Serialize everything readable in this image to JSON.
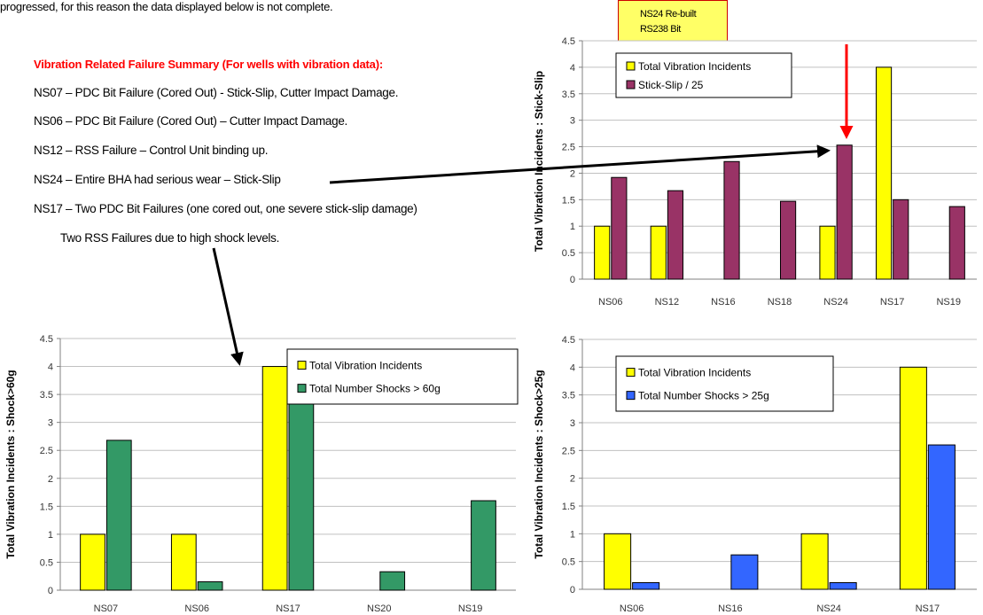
{
  "intro_text": "progressed, for this reason the data displayed below is not complete.",
  "summary_heading": "Vibration Related Failure Summary (For wells with vibration data):",
  "failures": [
    "NS07 – PDC Bit Failure (Cored Out) - Stick-Slip, Cutter Impact Damage.",
    "NS06 – PDC Bit Failure (Cored Out) – Cutter Impact Damage.",
    "NS12 – RSS Failure – Control Unit binding up.",
    "NS24 – Entire BHA had serious wear – Stick-Slip",
    "NS17 – Two PDC Bit Failures (one cored out, one severe stick-slip damage)",
    "Two RSS Failures due to high shock levels."
  ],
  "callout": {
    "line1": "NS24 Re-built",
    "line2": "RS238 Bit"
  },
  "colors": {
    "yellow": "#ffff00",
    "maroon": "#993366",
    "green": "#339966",
    "blue": "#3366ff",
    "red": "#ff0000"
  },
  "chart_data": [
    {
      "type": "bar",
      "categories": [
        "NS06",
        "NS12",
        "NS16",
        "NS18",
        "NS24",
        "NS17",
        "NS19"
      ],
      "series": [
        {
          "name": "Total Vibration Incidents",
          "values": [
            1,
            1,
            0,
            0,
            1,
            4,
            0
          ]
        },
        {
          "name": "Stick-Slip / 25",
          "values": [
            1.92,
            1.67,
            2.22,
            1.47,
            2.53,
            1.5,
            1.37
          ]
        }
      ],
      "ylabel": "Total Vibration Incidents : Stick-Slip",
      "ylim": [
        0,
        4.5
      ],
      "yticks": [
        "0",
        "0.5",
        "1",
        "1.5",
        "2",
        "2.5",
        "3",
        "3.5",
        "4",
        "4.5"
      ],
      "grid": true,
      "legend": "top-left"
    },
    {
      "type": "bar",
      "categories": [
        "NS07",
        "NS06",
        "NS17",
        "NS20",
        "NS19"
      ],
      "series": [
        {
          "name": "Total Vibration Incidents",
          "values": [
            1,
            1,
            4,
            0,
            0
          ]
        },
        {
          "name": "Total Number Shocks > 60g",
          "values": [
            2.68,
            0.15,
            3.65,
            0.33,
            1.6
          ]
        }
      ],
      "ylabel": "Total Vibration Incidents : Shock>60g",
      "ylim": [
        0,
        4.5
      ],
      "yticks": [
        "0",
        "0.5",
        "1",
        "1.5",
        "2",
        "2.5",
        "3",
        "3.5",
        "4",
        "4.5"
      ],
      "grid": true,
      "legend": "top-right"
    },
    {
      "type": "bar",
      "categories": [
        "NS06",
        "NS16",
        "NS24",
        "NS17"
      ],
      "series": [
        {
          "name": "Total Vibration Incidents",
          "values": [
            1,
            0,
            1,
            4
          ]
        },
        {
          "name": "Total Number Shocks > 25g",
          "values": [
            0.12,
            0.62,
            0.12,
            2.6
          ]
        }
      ],
      "ylabel": "Total Vibration Incidents : Shock>25g",
      "ylim": [
        0,
        4.5
      ],
      "yticks": [
        "0",
        "0.5",
        "1",
        "1.5",
        "2",
        "2.5",
        "3",
        "3.5",
        "4",
        "4.5"
      ],
      "grid": true,
      "legend": "top-left"
    }
  ]
}
